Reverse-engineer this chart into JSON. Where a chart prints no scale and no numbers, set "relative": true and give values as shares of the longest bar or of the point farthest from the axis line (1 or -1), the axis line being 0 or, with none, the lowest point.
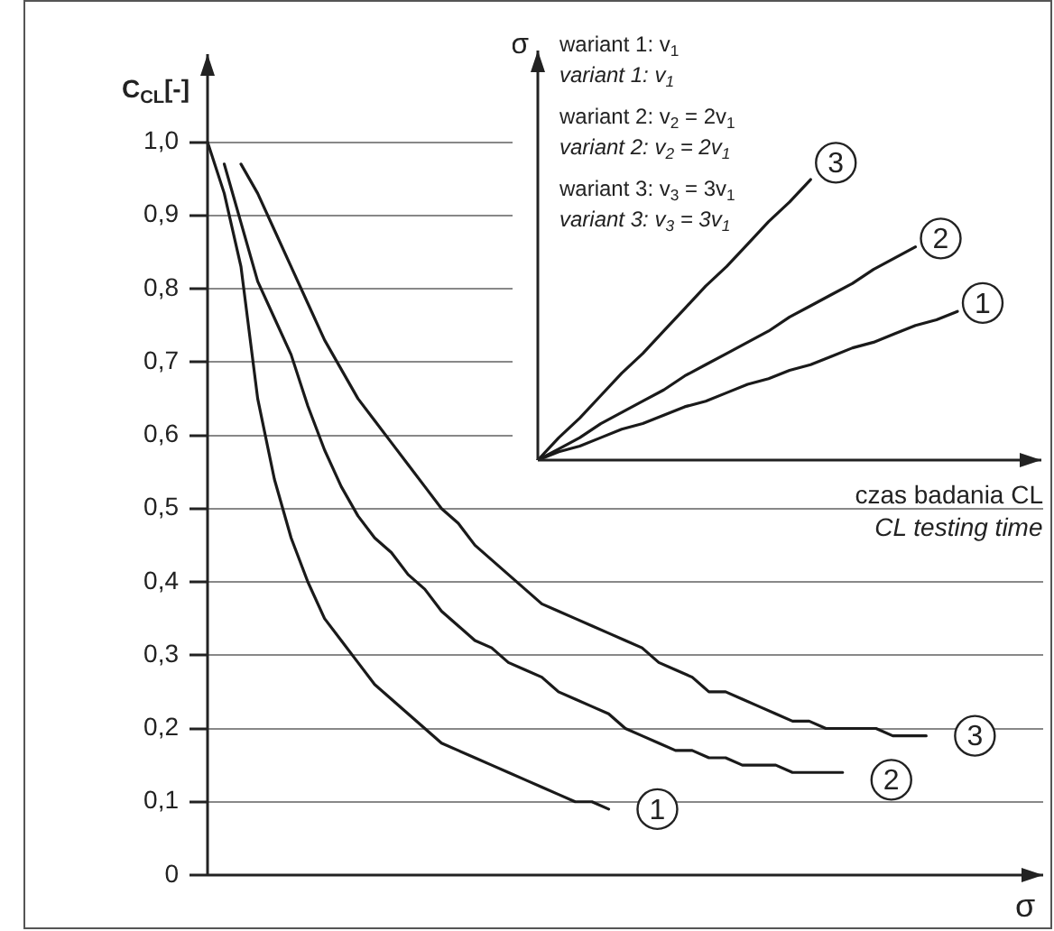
{
  "chart_data": [
    {
      "type": "line",
      "ylabel": "C$_{CL}$[-]",
      "xlabel": "σ",
      "ylim": [
        0,
        1.12
      ],
      "yticks": [
        0,
        {
          "value": 0.1,
          "label": "0,1"
        },
        {
          "value": 0.2,
          "label": "0,2"
        },
        {
          "value": 0.3,
          "label": "0,3"
        },
        {
          "value": 0.4,
          "label": "0,4"
        },
        {
          "value": 0.5,
          "label": "0,5"
        },
        {
          "value": 0.6,
          "label": "0,6"
        },
        {
          "value": 0.7,
          "label": "0,7"
        },
        {
          "value": 0.8,
          "label": "0,8"
        },
        {
          "value": 0.9,
          "label": "0,9"
        },
        {
          "value": 1.0,
          "label": "1,0"
        }
      ],
      "grid": "y",
      "tick_labels": "y",
      "categories": [
        null,
        null,
        null,
        null,
        null,
        null,
        null,
        null,
        null,
        null,
        null,
        null,
        null,
        null,
        null,
        null,
        null,
        null,
        null,
        null,
        null,
        null,
        null,
        null,
        null,
        null,
        null,
        null,
        null,
        null,
        null,
        null,
        null,
        null,
        null,
        null,
        null,
        null,
        null,
        null,
        null,
        null,
        null,
        null,
        null,
        null,
        null,
        null,
        null,
        null,
        null
      ],
      "series": [
        {
          "color": "#1a1a1a",
          "values": [
            1.0,
            0.93,
            0.83,
            0.65,
            0.54,
            0.46,
            0.4,
            0.35,
            0.32,
            0.29,
            0.26,
            0.24,
            0.22,
            0.2,
            0.18,
            0.17,
            0.16,
            0.15,
            0.14,
            0.13,
            0.12,
            0.11,
            0.1,
            0.1,
            0.09,
            null,
            null,
            null,
            null,
            null,
            null,
            null,
            null,
            null,
            null,
            null,
            null,
            null,
            null,
            null,
            null,
            null,
            null,
            null,
            null,
            null,
            null,
            null,
            null,
            null,
            null
          ]
        },
        {
          "color": "#1a1a1a",
          "values": [
            null,
            0.97,
            0.89,
            0.81,
            0.76,
            0.71,
            0.64,
            0.58,
            0.53,
            0.49,
            0.46,
            0.44,
            0.41,
            0.39,
            0.36,
            0.34,
            0.32,
            0.31,
            0.29,
            0.28,
            0.27,
            0.25,
            0.24,
            0.23,
            0.22,
            0.2,
            0.19,
            0.18,
            0.17,
            0.17,
            0.16,
            0.16,
            0.15,
            0.15,
            0.15,
            0.14,
            0.14,
            0.14,
            0.14,
            null,
            null,
            null,
            null,
            null,
            null,
            null,
            null,
            null,
            null,
            null,
            null
          ]
        },
        {
          "color": "#1a1a1a",
          "values": [
            null,
            null,
            0.97,
            0.93,
            0.88,
            0.83,
            0.78,
            0.73,
            0.69,
            0.65,
            0.62,
            0.59,
            0.56,
            0.53,
            0.5,
            0.48,
            0.45,
            0.43,
            0.41,
            0.39,
            0.37,
            0.36,
            0.35,
            0.34,
            0.33,
            0.32,
            0.31,
            0.29,
            0.28,
            0.27,
            0.25,
            0.25,
            0.24,
            0.23,
            0.22,
            0.21,
            0.21,
            0.2,
            0.2,
            0.2,
            0.2,
            0.19,
            0.19,
            0.19,
            null,
            null,
            null,
            null,
            null,
            null,
            null
          ]
        }
      ],
      "annotations": [
        {
          "text": "1",
          "y": 0.09
        },
        {
          "text": "2",
          "y": 0.13
        },
        {
          "text": "3",
          "y": 0.19
        }
      ]
    },
    {
      "type": "line",
      "relative": true,
      "ylabel": "σ",
      "xlabel": "czas badania CL\nCL testing time",
      "tick_labels": false,
      "categories": [
        null,
        null,
        null,
        null,
        null,
        null,
        null,
        null,
        null,
        null,
        null,
        null,
        null,
        null,
        null,
        null,
        null,
        null,
        null,
        null,
        null,
        null,
        null,
        null,
        null
      ],
      "series": [
        {
          "color": "#1a1a1a",
          "values": [
            0,
            0.03,
            0.05,
            0.08,
            0.11,
            0.13,
            0.16,
            0.19,
            0.21,
            0.24,
            0.27,
            0.29,
            0.32,
            0.34,
            0.37,
            0.4,
            0.42,
            0.45,
            0.48,
            0.5,
            0.53,
            null,
            null,
            null,
            null
          ]
        },
        {
          "color": "#1a1a1a",
          "values": [
            0,
            0.04,
            0.08,
            0.13,
            0.17,
            0.21,
            0.25,
            0.3,
            0.34,
            0.38,
            0.42,
            0.46,
            0.51,
            0.55,
            0.59,
            0.63,
            0.68,
            0.72,
            0.76,
            null,
            null,
            null,
            null,
            null,
            null
          ]
        },
        {
          "color": "#1a1a1a",
          "values": [
            0,
            0.08,
            0.15,
            0.23,
            0.31,
            0.38,
            0.46,
            0.54,
            0.62,
            0.69,
            0.77,
            0.85,
            0.92,
            1,
            null,
            null,
            null,
            null,
            null,
            null,
            null,
            null,
            null,
            null,
            null
          ]
        }
      ],
      "annotations": [
        "wariant 1: v$_{1}$",
        "variant 1: v$_{1}$",
        "wariant 2: v$_{2}$ = 2v$_{1}$",
        "variant 2: v$_{2}$ = 2v$_{1}$",
        "wariant 3: v$_{3}$ = 3v$_{1}$",
        "variant 3: v$_{3}$ = 3v$_{1}$",
        {
          "text": "1",
          "y": 0.56
        },
        {
          "text": "2",
          "y": 0.79
        },
        {
          "text": "3",
          "y": 1.06
        }
      ]
    }
  ]
}
